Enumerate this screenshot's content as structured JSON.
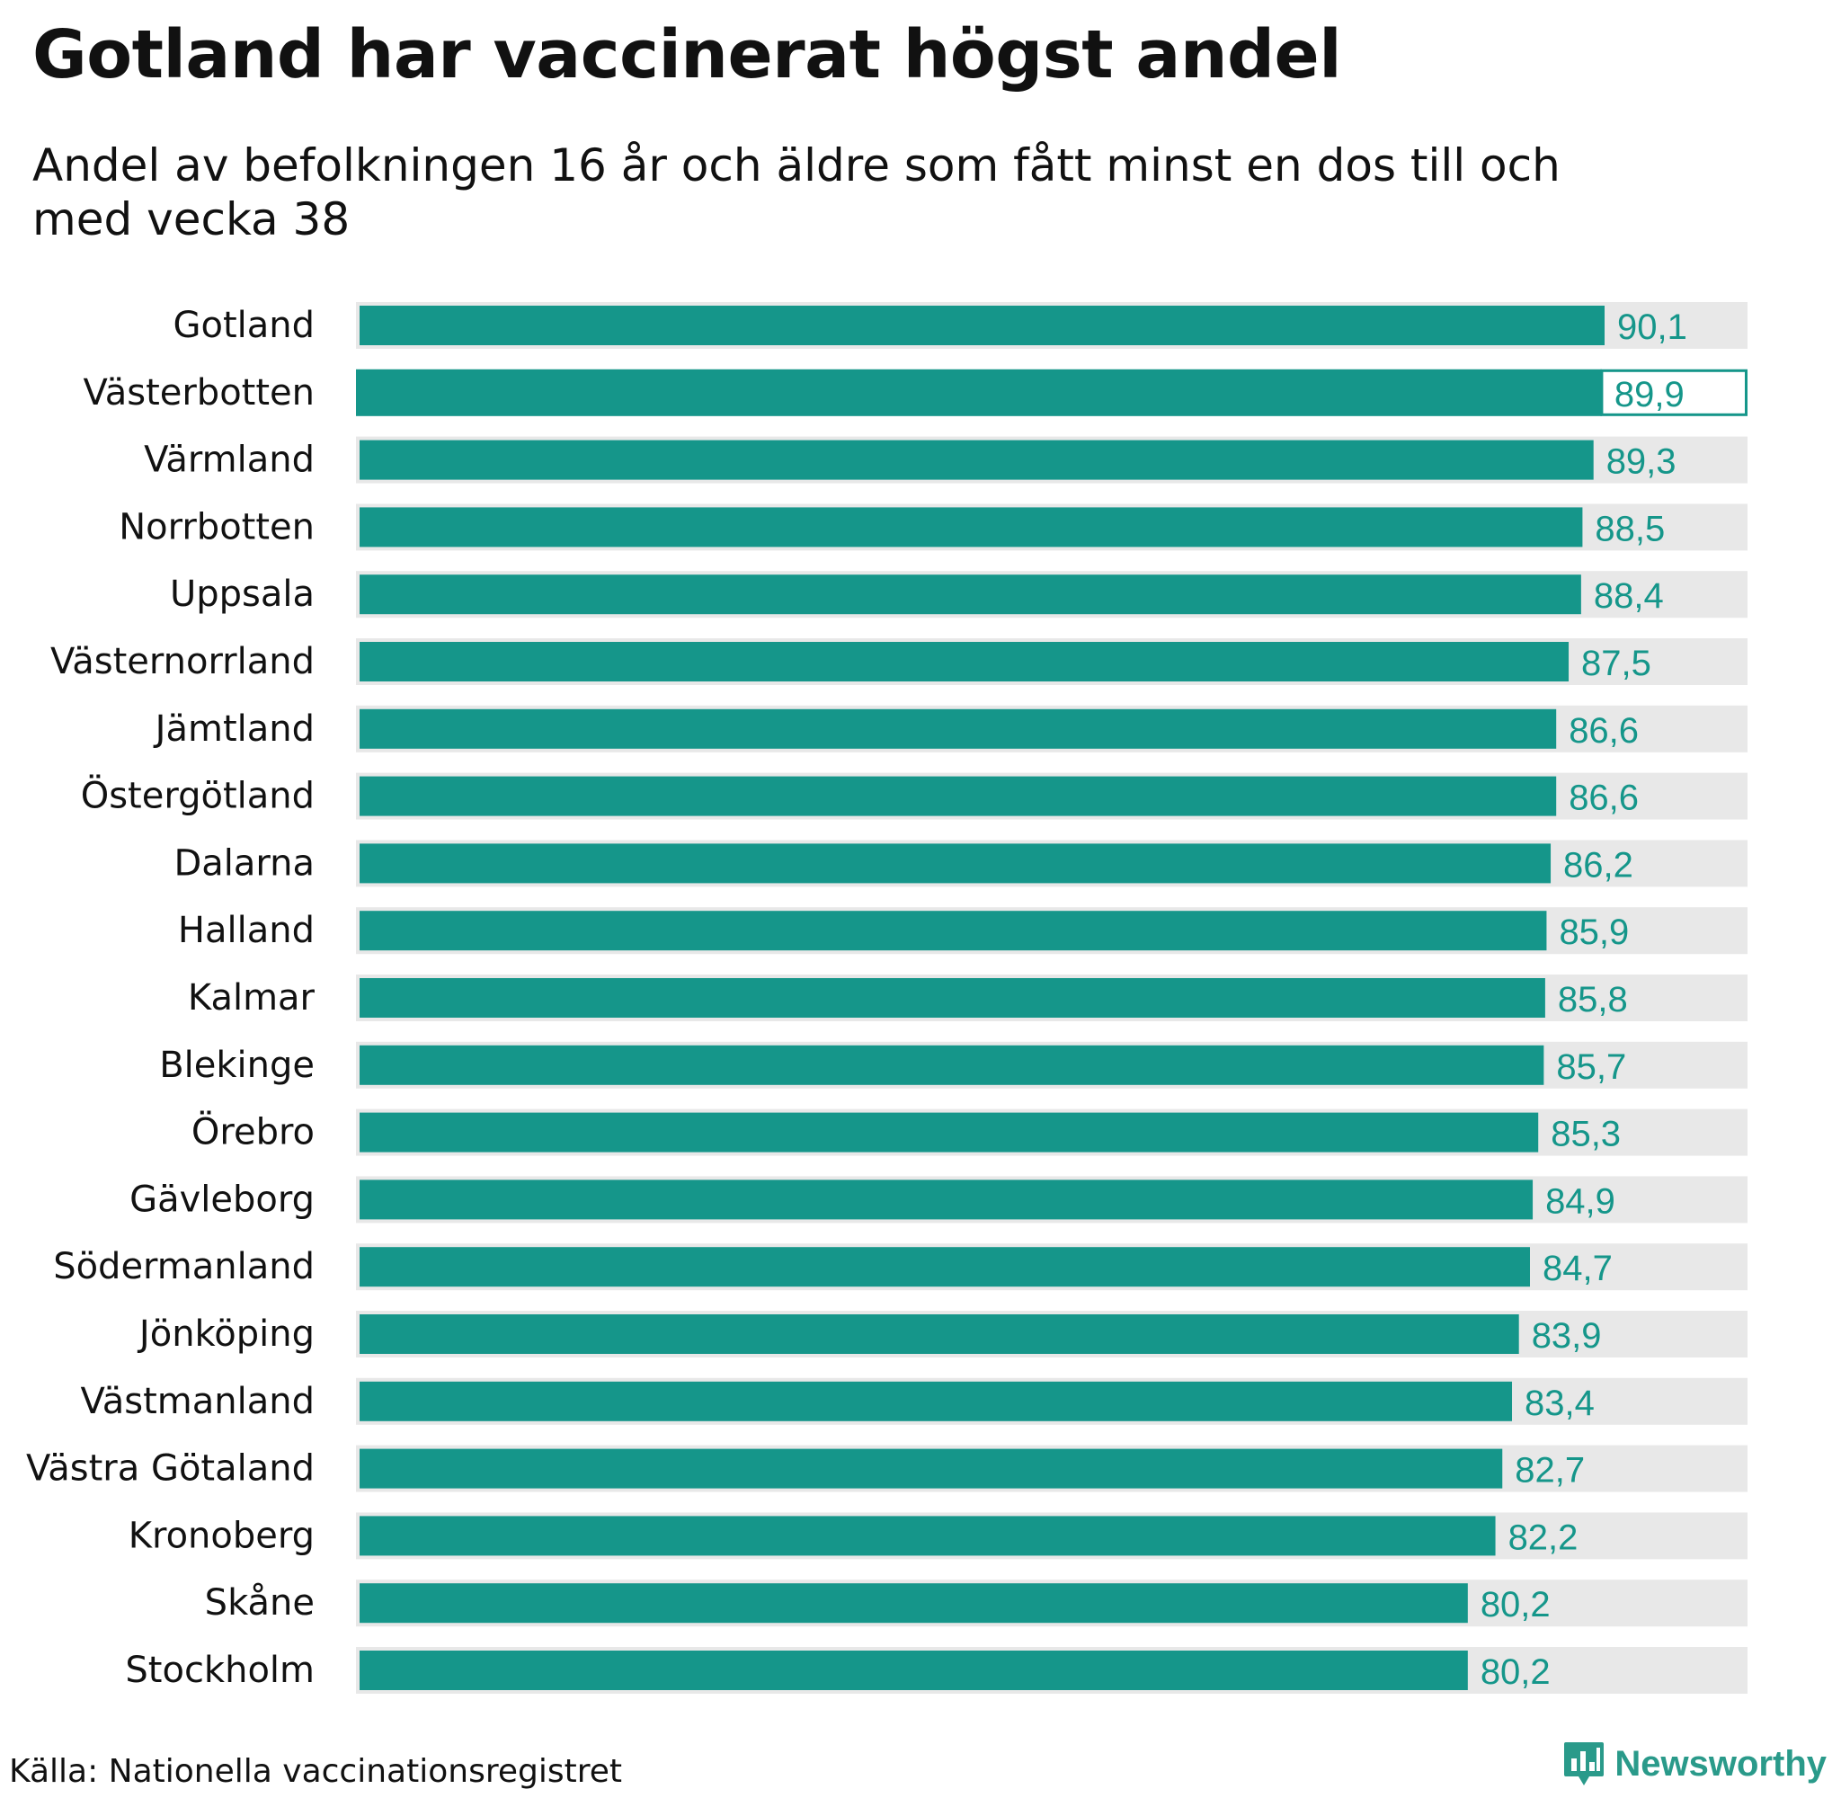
{
  "title": "Gotland har vaccinerat högst andel",
  "subtitle": "Andel av befolkningen 16 år och äldre som fått minst en dos till och med vecka 38",
  "source": "Källa: Nationella vaccinationsregistret",
  "brand": "Newsworthy",
  "colors": {
    "bar": "#15968a",
    "track": "#e8e8e8",
    "value_text": "#15968a",
    "label_text": "#111111"
  },
  "chart_data": {
    "type": "bar",
    "orientation": "horizontal",
    "categories": [
      "Gotland",
      "Västerbotten",
      "Värmland",
      "Norrbotten",
      "Uppsala",
      "Västernorrland",
      "Jämtland",
      "Östergötland",
      "Dalarna",
      "Halland",
      "Kalmar",
      "Blekinge",
      "Örebro",
      "Gävleborg",
      "Södermanland",
      "Jönköping",
      "Västmanland",
      "Västra Götaland",
      "Kronoberg",
      "Skåne",
      "Stockholm"
    ],
    "values": [
      90.1,
      89.9,
      89.3,
      88.5,
      88.4,
      87.5,
      86.6,
      86.6,
      86.2,
      85.9,
      85.8,
      85.7,
      85.3,
      84.9,
      84.7,
      83.9,
      83.4,
      82.7,
      82.2,
      80.2,
      80.2
    ],
    "value_labels": [
      "90,1",
      "89,9",
      "89,3",
      "88,5",
      "88,4",
      "87,5",
      "86,6",
      "86,6",
      "86,2",
      "85,9",
      "85,8",
      "85,7",
      "85,3",
      "84,9",
      "84,7",
      "83,9",
      "83,4",
      "82,7",
      "82,2",
      "80,2",
      "80,2"
    ],
    "xlim": [
      0,
      100
    ],
    "highlighted": "Västerbotten",
    "title": "Gotland har vaccinerat högst andel",
    "xlabel": "",
    "ylabel": "",
    "grid": false,
    "legend": "none"
  }
}
